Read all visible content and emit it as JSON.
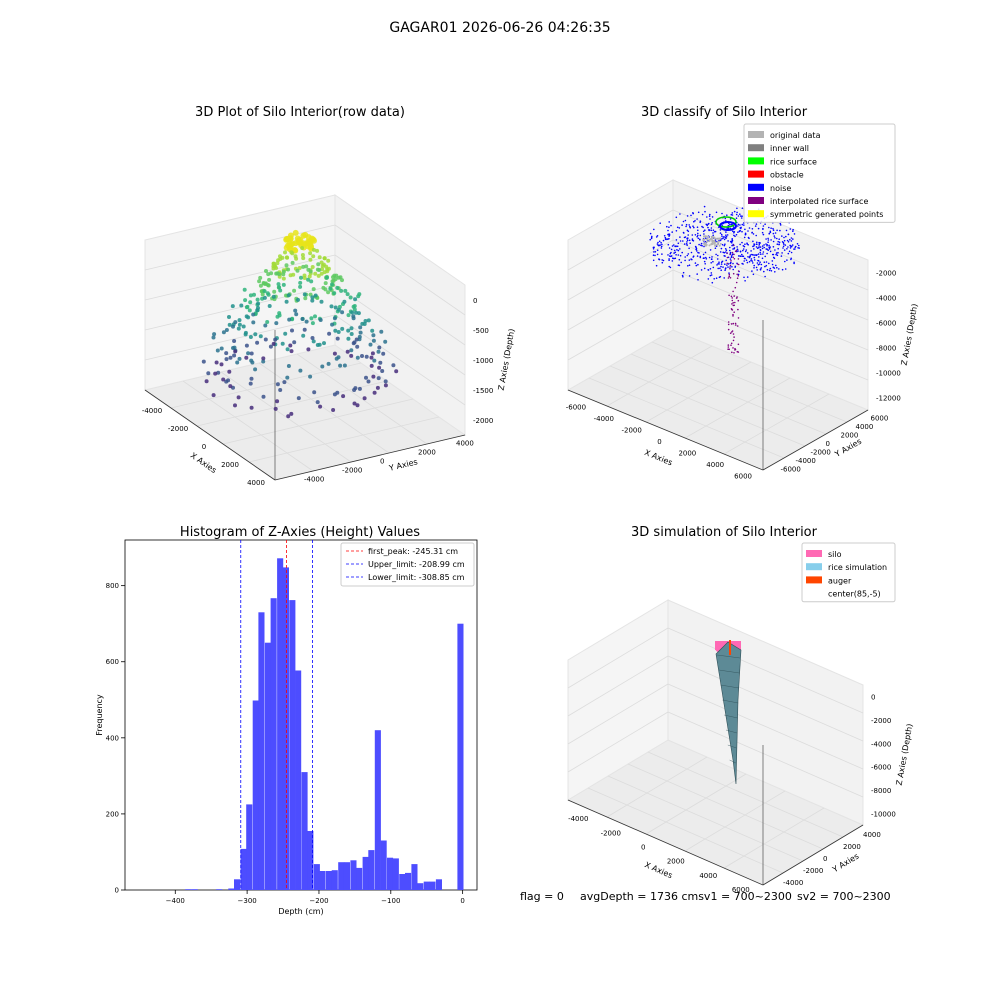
{
  "suptitle": "GAGAR01 2026-06-26 04:26:35",
  "footer": {
    "flag": "flag = 0",
    "avg": "avgDepth = 1736 cmsv1 = 700~2300",
    "sv2": "sv2 = 700~2300"
  },
  "chart_data": [
    {
      "type": "scatter",
      "title": "3D Plot of Silo Interior(row data)",
      "xlabel": "X Axies",
      "ylabel": "Y Axies",
      "zlabel": "Z Axies (Depth)",
      "xticks": [
        "-4000",
        "-2000",
        "0",
        "2000",
        "4000"
      ],
      "yticks": [
        "-4000",
        "-2000",
        "0",
        "2000",
        "4000"
      ],
      "zticks": [
        "0",
        "-500",
        "-1000",
        "-1500",
        "-2000"
      ],
      "xlim": [
        -4500,
        4500
      ],
      "ylim": [
        -4500,
        4500
      ],
      "zlim": [
        -2300,
        0
      ],
      "rings": [
        {
          "z": -300,
          "r": 500,
          "n": 44,
          "color": "#e7e419"
        },
        {
          "z": -600,
          "r": 1100,
          "n": 60,
          "color": "#a2da37"
        },
        {
          "z": -850,
          "r": 1500,
          "n": 72,
          "color": "#5ec962"
        },
        {
          "z": -1100,
          "r": 2100,
          "n": 58,
          "color": "#2fb47c"
        },
        {
          "z": -1350,
          "r": 2600,
          "n": 60,
          "color": "#21918c"
        },
        {
          "z": -1650,
          "r": 3000,
          "n": 56,
          "color": "#2c728e"
        },
        {
          "z": -1950,
          "r": 3300,
          "n": 52,
          "color": "#3b528b"
        },
        {
          "z": -2150,
          "r": 3500,
          "n": 40,
          "color": "#472d7b"
        }
      ]
    },
    {
      "type": "scatter",
      "title": "3D classify of Silo Interior",
      "xlabel": "X Axies",
      "ylabel": "Y Axies",
      "zlabel": "Z Axies (Depth)",
      "xticks": [
        "-6000",
        "-4000",
        "-2000",
        "0",
        "2000",
        "4000",
        "6000"
      ],
      "yticks": [
        "-6000",
        "-4000",
        "-2000",
        "0",
        "2000",
        "4000",
        "6000"
      ],
      "zticks": [
        "-2000",
        "-4000",
        "-6000",
        "-8000",
        "-10000",
        "-12000"
      ],
      "xlim": [
        -6000,
        6000
      ],
      "ylim": [
        -6000,
        6000
      ],
      "zlim": [
        -12500,
        0
      ],
      "legend_position": "upper-right",
      "legend": [
        {
          "label": "original data",
          "color": "#b3b3b3"
        },
        {
          "label": "inner wall",
          "color": "#808080"
        },
        {
          "label": "rice surface",
          "color": "#00ff00"
        },
        {
          "label": "obstacle",
          "color": "#ff0000"
        },
        {
          "label": "noise",
          "color": "#0000ff"
        },
        {
          "label": "interpolated rice surface",
          "color": "#800080"
        },
        {
          "label": "symmetric generated points",
          "color": "#ffff00"
        }
      ]
    },
    {
      "type": "bar",
      "title": "Histogram of Z-Axies (Height) Values",
      "xlabel": "Depth (cm)",
      "ylabel": "Frequency",
      "xlim": [
        -470,
        20
      ],
      "ylim": [
        0,
        920
      ],
      "xticks": [
        -400,
        -300,
        -200,
        -100,
        0
      ],
      "yticks": [
        0,
        200,
        400,
        600,
        800
      ],
      "bar_color": "#4d4dff",
      "bin_width": 8.5,
      "bins": [
        {
          "x": -382,
          "y": 2
        },
        {
          "x": -373,
          "y": 2
        },
        {
          "x": -339,
          "y": 2
        },
        {
          "x": -322,
          "y": 4
        },
        {
          "x": -314,
          "y": 28
        },
        {
          "x": -305,
          "y": 108
        },
        {
          "x": -297,
          "y": 225
        },
        {
          "x": -288,
          "y": 498
        },
        {
          "x": -280,
          "y": 730
        },
        {
          "x": -271,
          "y": 650
        },
        {
          "x": -263,
          "y": 767
        },
        {
          "x": -254,
          "y": 872
        },
        {
          "x": -246,
          "y": 848
        },
        {
          "x": -237,
          "y": 762
        },
        {
          "x": -229,
          "y": 577
        },
        {
          "x": -220,
          "y": 310
        },
        {
          "x": -212,
          "y": 155
        },
        {
          "x": -203,
          "y": 68
        },
        {
          "x": -195,
          "y": 50
        },
        {
          "x": -186,
          "y": 50
        },
        {
          "x": -178,
          "y": 52
        },
        {
          "x": -169,
          "y": 73
        },
        {
          "x": -161,
          "y": 73
        },
        {
          "x": -152,
          "y": 78
        },
        {
          "x": -144,
          "y": 58
        },
        {
          "x": -135,
          "y": 87
        },
        {
          "x": -127,
          "y": 105
        },
        {
          "x": -118,
          "y": 420
        },
        {
          "x": -110,
          "y": 130
        },
        {
          "x": -101,
          "y": 85
        },
        {
          "x": -93,
          "y": 83
        },
        {
          "x": -84,
          "y": 42
        },
        {
          "x": -76,
          "y": 45
        },
        {
          "x": -67,
          "y": 68
        },
        {
          "x": -59,
          "y": 18
        },
        {
          "x": -50,
          "y": 22
        },
        {
          "x": -42,
          "y": 22
        },
        {
          "x": -33,
          "y": 28
        },
        {
          "x": -3,
          "y": 700
        }
      ],
      "vlines": [
        {
          "x": -245.31,
          "color": "#ff0000",
          "label": "first_peak: -245.31 cm"
        },
        {
          "x": -208.99,
          "color": "#0000ff",
          "label": "Upper_limit: -208.99 cm"
        },
        {
          "x": -308.85,
          "color": "#0000ff",
          "label": "Lower_limit: -308.85 cm"
        }
      ],
      "legend_position": "upper-right"
    },
    {
      "type": "surface",
      "title": "3D simulation of Silo Interior",
      "xlabel": "X Axies",
      "ylabel": "Y Axies",
      "zlabel": "Z Axies (Depth)",
      "xticks": [
        "-4000",
        "-2000",
        "0",
        "2000",
        "4000",
        "6000"
      ],
      "yticks": [
        "-4000",
        "-2000",
        "0",
        "2000",
        "4000"
      ],
      "zticks": [
        "0",
        "-2000",
        "-4000",
        "-6000",
        "-8000",
        "-10000"
      ],
      "xlim": [
        -5000,
        6000
      ],
      "ylim": [
        -5000,
        5000
      ],
      "zlim": [
        -11000,
        0
      ],
      "legend_position": "upper-right",
      "legend": [
        {
          "label": "silo",
          "color": "#ff69b4"
        },
        {
          "label": "rice simulation",
          "color": "#87ceeb"
        },
        {
          "label": "auger",
          "color": "#ff4500"
        },
        {
          "label": "center(85,-5)",
          "color": ""
        }
      ]
    }
  ]
}
